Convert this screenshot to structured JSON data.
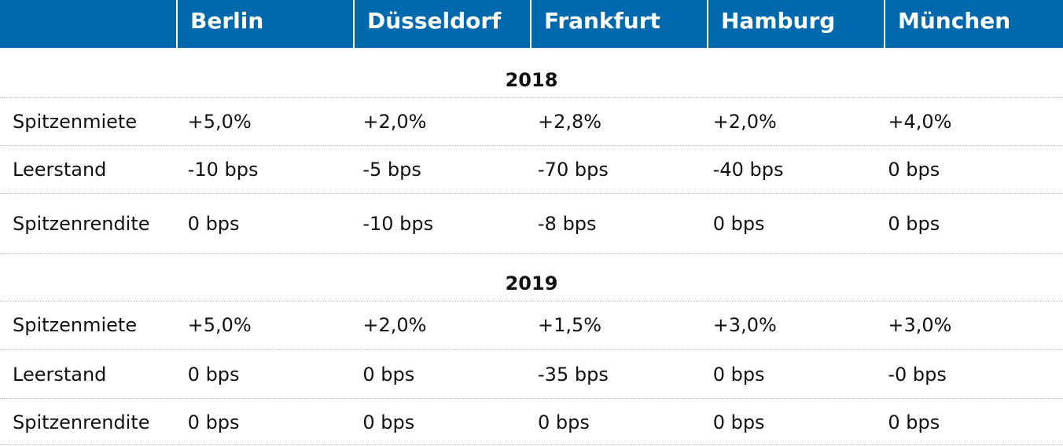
{
  "header": {
    "columns": [
      "",
      "Berlin",
      "Düsseldorf",
      "Frankfurt",
      "Hamburg",
      "München"
    ]
  },
  "sections": [
    {
      "year": "2018",
      "rows": [
        {
          "label": "Spitzenmiete",
          "values": [
            "+5,0%",
            "+2,0%",
            "+2,8%",
            "+2,0%",
            "+4,0%"
          ]
        },
        {
          "label": "Leerstand",
          "values": [
            "-10 bps",
            "-5 bps",
            "-70 bps",
            "-40 bps",
            "0 bps"
          ]
        },
        {
          "label": "Spitzenrendite",
          "values": [
            "0 bps",
            "-10 bps",
            "-8 bps",
            "0 bps",
            "0 bps"
          ]
        }
      ]
    },
    {
      "year": "2019",
      "rows": [
        {
          "label": "Spitzenmiete",
          "values": [
            "+5,0%",
            "+2,0%",
            "+1,5%",
            "+3,0%",
            "+3,0%"
          ]
        },
        {
          "label": "Leerstand",
          "values": [
            "0 bps",
            "0 bps",
            "-35 bps",
            "0 bps",
            "-0 bps"
          ]
        },
        {
          "label": "Spitzenrendite",
          "values": [
            "0 bps",
            "0 bps",
            "0 bps",
            "0 bps",
            "0 bps"
          ]
        }
      ]
    }
  ],
  "colors": {
    "header_bg": "#0068ad",
    "header_text": "#ffffff",
    "separator": "#c6b59a"
  }
}
